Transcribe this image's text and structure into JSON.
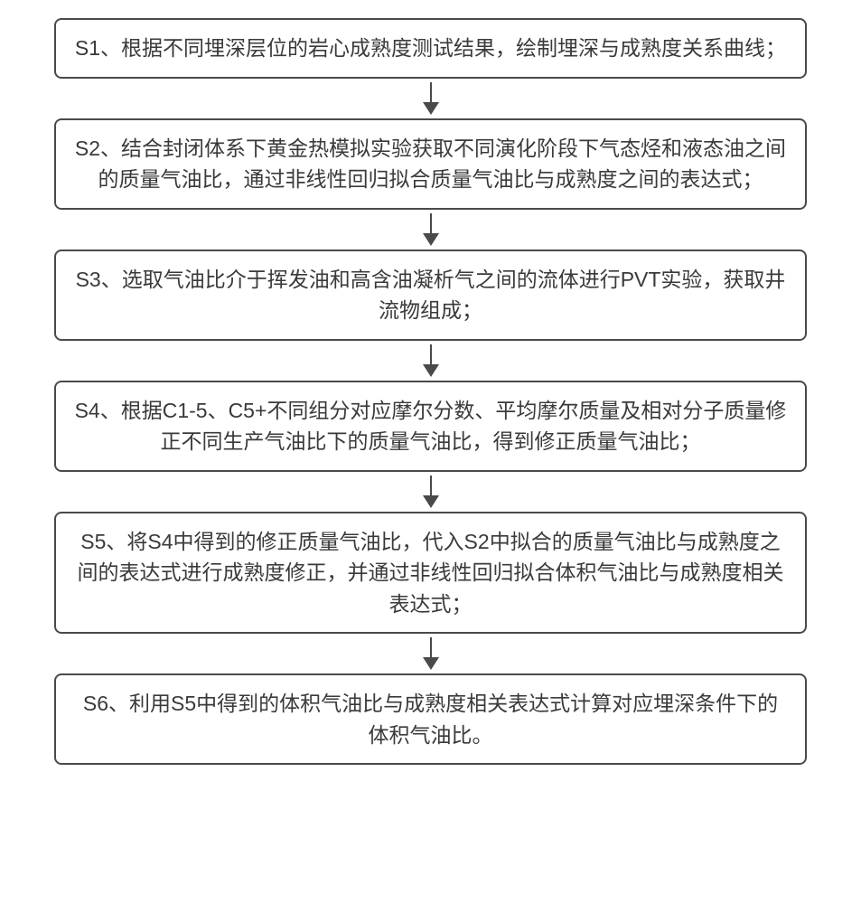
{
  "flowchart": {
    "type": "flowchart",
    "direction": "vertical",
    "box_border_color": "#4a4a4a",
    "box_border_radius": 8,
    "box_border_width": 2,
    "text_color": "#3a3a3a",
    "font_size": 23,
    "arrow_color": "#4a4a4a",
    "background_color": "#ffffff",
    "steps": [
      {
        "id": "s1",
        "text": "S1、根据不同埋深层位的岩心成熟度测试结果，绘制埋深与成熟度关系曲线；"
      },
      {
        "id": "s2",
        "text": "S2、结合封闭体系下黄金热模拟实验获取不同演化阶段下气态烃和液态油之间的质量气油比，通过非线性回归拟合质量气油比与成熟度之间的表达式；"
      },
      {
        "id": "s3",
        "text": "S3、选取气油比介于挥发油和高含油凝析气之间的流体进行PVT实验，获取井流物组成；"
      },
      {
        "id": "s4",
        "text": "S4、根据C1-5、C5+不同组分对应摩尔分数、平均摩尔质量及相对分子质量修正不同生产气油比下的质量气油比，得到修正质量气油比；"
      },
      {
        "id": "s5",
        "text": "S5、将S4中得到的修正质量气油比，代入S2中拟合的质量气油比与成熟度之间的表达式进行成熟度修正，并通过非线性回归拟合体积气油比与成熟度相关表达式；"
      },
      {
        "id": "s6",
        "text": "S6、利用S5中得到的体积气油比与成熟度相关表达式计算对应埋深条件下的体积气油比。"
      }
    ]
  }
}
